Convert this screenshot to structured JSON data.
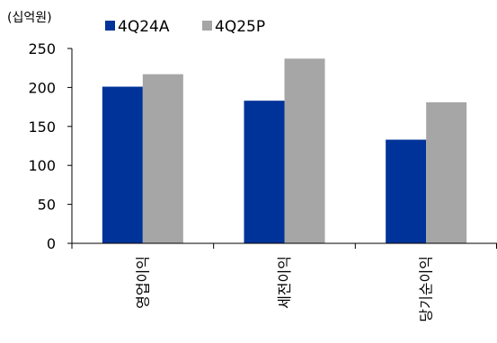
{
  "chart_data": {
    "type": "bar",
    "unit_label": "(십억원)",
    "categories": [
      "영업이익",
      "세전이익",
      "당기순이익"
    ],
    "series": [
      {
        "name": "4Q24A",
        "color": "#003399",
        "values": [
          201,
          183,
          133
        ]
      },
      {
        "name": "4Q25P",
        "color": "#a6a6a6",
        "values": [
          217,
          237,
          181
        ]
      }
    ],
    "ylim": [
      0,
      250
    ],
    "yticks": [
      0,
      50,
      100,
      150,
      200,
      250
    ],
    "legend_position": "top",
    "grid": false
  }
}
